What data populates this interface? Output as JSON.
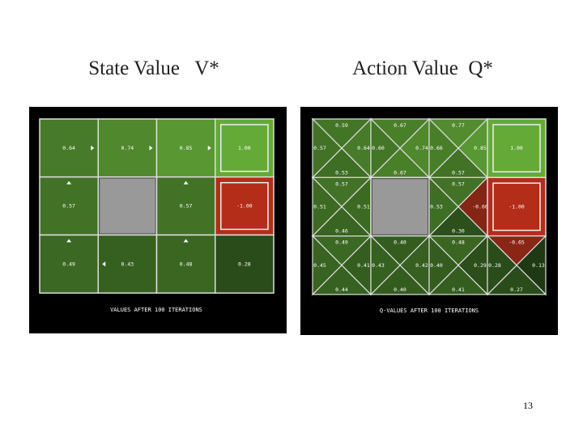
{
  "titles": {
    "left": "State Value   V*",
    "right": "Action Value  Q*"
  },
  "state_values": {
    "rows": [
      [
        "0.64",
        "0.74",
        "0.85",
        "1.00"
      ],
      [
        "0.57",
        null,
        "0.57",
        "-1.00"
      ],
      [
        "0.49",
        "0.43",
        "0.48",
        "0.28"
      ]
    ],
    "caption": "VALUES AFTER 100 ITERATIONS"
  },
  "q_values": {
    "rows": [
      [
        {
          "top": "0.59",
          "left": "0.57",
          "right": "0.64",
          "bottom": "0.53"
        },
        {
          "top": "0.67",
          "left": "0.60",
          "right": "0.74",
          "bottom": "0.67"
        },
        {
          "top": "0.77",
          "left": "0.66",
          "right": "0.85",
          "bottom": "0.57"
        },
        {
          "value": "1.00"
        }
      ],
      [
        {
          "top": "0.57",
          "left": "0.51",
          "right": "0.51",
          "bottom": "0.46"
        },
        null,
        {
          "top": "0.57",
          "left": "0.53",
          "right": "-0.60",
          "bottom": "0.30"
        },
        {
          "value": "-1.00"
        }
      ],
      [
        {
          "top": "0.49",
          "left": "0.45",
          "right": "0.41",
          "bottom": "0.44"
        },
        {
          "top": "0.40",
          "left": "0.43",
          "right": "0.42",
          "bottom": "0.40"
        },
        {
          "top": "0.48",
          "left": "0.40",
          "right": "0.29",
          "bottom": "0.41"
        },
        {
          "top": "-0.65",
          "left": "0.28",
          "right": "0.13",
          "bottom": "0.27"
        }
      ]
    ],
    "caption": "Q-VALUES AFTER 100 ITERATIONS"
  },
  "page_number": "13"
}
